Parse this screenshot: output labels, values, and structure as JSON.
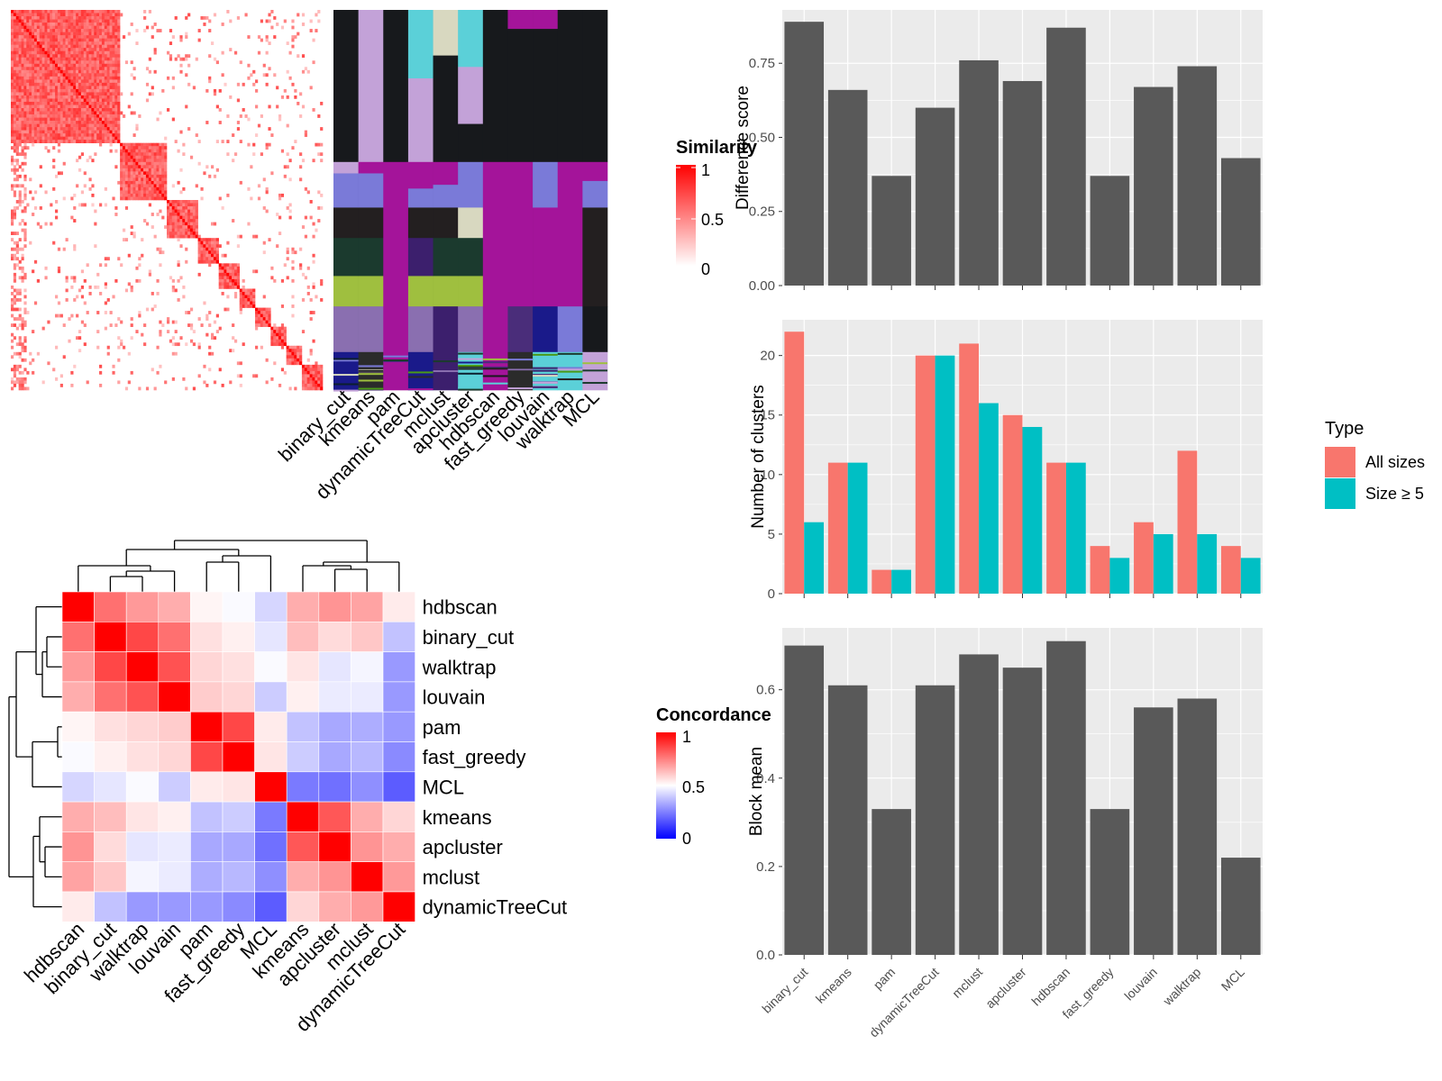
{
  "colors": {
    "bar_gray": "#595959",
    "panel_bg": "#ebebeb",
    "grid": "#ffffff",
    "all_sizes": "#f8766d",
    "size_ge5": "#00bfc4",
    "heat_high": "#ff0000",
    "heat_mid": "#ffffff",
    "heat_low": "#0000ff",
    "annotation_bg": "#17191c",
    "purple": "#a4149a",
    "slate": "#7a7ad8",
    "lavender": "#c3a2d8"
  },
  "similarity_panel": {
    "legend_title": "Similarity",
    "legend_ticks": [
      "1",
      "0.5",
      "0"
    ],
    "methods": [
      "binary_cut",
      "kmeans",
      "pam",
      "dynamicTreeCut",
      "mclust",
      "apcluster",
      "hdbscan",
      "fast_greedy",
      "louvain",
      "walktrap",
      "MCL"
    ]
  },
  "concordance_panel": {
    "legend_title": "Concordance",
    "legend_ticks": [
      "1",
      "0.5",
      "0"
    ],
    "methods": [
      "hdbscan",
      "binary_cut",
      "walktrap",
      "louvain",
      "pam",
      "fast_greedy",
      "MCL",
      "kmeans",
      "apcluster",
      "mclust",
      "dynamicTreeCut"
    ]
  },
  "chart_data": [
    {
      "type": "bar",
      "ylabel": "Difference score",
      "categories": [
        "binary_cut",
        "kmeans",
        "pam",
        "dynamicTreeCut",
        "mclust",
        "apcluster",
        "hdbscan",
        "fast_greedy",
        "louvain",
        "walktrap",
        "MCL"
      ],
      "values": [
        0.89,
        0.66,
        0.37,
        0.6,
        0.76,
        0.69,
        0.87,
        0.37,
        0.67,
        0.74,
        0.43
      ],
      "ylim": [
        0,
        0.93
      ],
      "yticks": [
        0.0,
        0.25,
        0.5,
        0.75
      ],
      "ytick_labels": [
        "0.00",
        "0.25",
        "0.50",
        "0.75"
      ]
    },
    {
      "type": "bar",
      "ylabel": "Number of clusters",
      "categories": [
        "binary_cut",
        "kmeans",
        "pam",
        "dynamicTreeCut",
        "mclust",
        "apcluster",
        "hdbscan",
        "fast_greedy",
        "louvain",
        "walktrap",
        "MCL"
      ],
      "series": [
        {
          "name": "All sizes",
          "values": [
            22,
            11,
            2,
            20,
            21,
            15,
            11,
            4,
            6,
            12,
            4
          ]
        },
        {
          "name": "Size ≥ 5",
          "values": [
            6,
            11,
            2,
            20,
            16,
            14,
            11,
            3,
            5,
            5,
            3
          ]
        }
      ],
      "legend_title": "Type",
      "ylim": [
        0,
        23
      ],
      "yticks": [
        0,
        5,
        10,
        15,
        20
      ],
      "ytick_labels": [
        "0",
        "5",
        "10",
        "15",
        "20"
      ]
    },
    {
      "type": "bar",
      "ylabel": "Block mean",
      "categories": [
        "binary_cut",
        "kmeans",
        "pam",
        "dynamicTreeCut",
        "mclust",
        "apcluster",
        "hdbscan",
        "fast_greedy",
        "louvain",
        "walktrap",
        "MCL"
      ],
      "values": [
        0.7,
        0.61,
        0.33,
        0.61,
        0.68,
        0.65,
        0.71,
        0.33,
        0.56,
        0.58,
        0.22
      ],
      "ylim": [
        0,
        0.74
      ],
      "yticks": [
        0.0,
        0.2,
        0.4,
        0.6
      ],
      "ytick_labels": [
        "0.0",
        "0.2",
        "0.4",
        "0.6"
      ]
    },
    {
      "type": "heatmap",
      "rows": [
        "hdbscan",
        "binary_cut",
        "walktrap",
        "louvain",
        "pam",
        "fast_greedy",
        "MCL",
        "kmeans",
        "apcluster",
        "mclust",
        "dynamicTreeCut"
      ],
      "cols": [
        "hdbscan",
        "binary_cut",
        "walktrap",
        "louvain",
        "pam",
        "fast_greedy",
        "MCL",
        "kmeans",
        "apcluster",
        "mclust",
        "dynamicTreeCut"
      ],
      "values": [
        [
          1.0,
          0.78,
          0.7,
          0.66,
          0.52,
          0.49,
          0.42,
          0.66,
          0.71,
          0.68,
          0.54
        ],
        [
          0.78,
          1.0,
          0.86,
          0.78,
          0.56,
          0.53,
          0.45,
          0.63,
          0.57,
          0.61,
          0.38
        ],
        [
          0.7,
          0.86,
          1.0,
          0.84,
          0.58,
          0.56,
          0.49,
          0.55,
          0.45,
          0.48,
          0.3
        ],
        [
          0.66,
          0.78,
          0.84,
          1.0,
          0.6,
          0.58,
          0.4,
          0.53,
          0.46,
          0.46,
          0.3
        ],
        [
          0.52,
          0.56,
          0.58,
          0.6,
          1.0,
          0.86,
          0.54,
          0.38,
          0.33,
          0.34,
          0.3
        ],
        [
          0.49,
          0.53,
          0.56,
          0.58,
          0.86,
          1.0,
          0.55,
          0.4,
          0.33,
          0.36,
          0.27
        ],
        [
          0.42,
          0.45,
          0.49,
          0.4,
          0.54,
          0.55,
          1.0,
          0.24,
          0.22,
          0.28,
          0.18
        ],
        [
          0.66,
          0.63,
          0.55,
          0.53,
          0.38,
          0.4,
          0.24,
          1.0,
          0.83,
          0.66,
          0.58
        ],
        [
          0.71,
          0.57,
          0.45,
          0.46,
          0.33,
          0.33,
          0.22,
          0.83,
          1.0,
          0.71,
          0.66
        ],
        [
          0.68,
          0.61,
          0.48,
          0.46,
          0.34,
          0.36,
          0.28,
          0.66,
          0.71,
          1.0,
          0.7
        ],
        [
          0.54,
          0.38,
          0.3,
          0.3,
          0.3,
          0.27,
          0.18,
          0.58,
          0.66,
          0.7,
          1.0
        ]
      ]
    }
  ]
}
